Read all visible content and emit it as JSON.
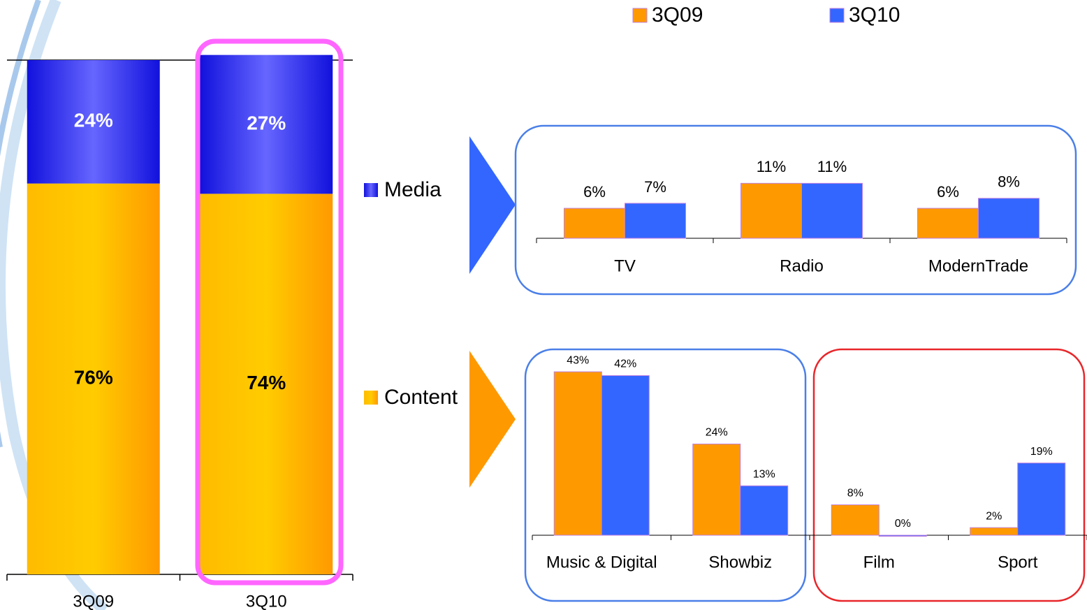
{
  "chart_data": [
    {
      "type": "stacked_bar",
      "categories": [
        "3Q09",
        "3Q10"
      ],
      "series": [
        {
          "name": "Content",
          "color": "#ffbb00",
          "values": [
            76,
            74
          ],
          "value_labels": [
            "76%",
            "74%"
          ]
        },
        {
          "name": "Media",
          "color": "#3333ee",
          "values": [
            24,
            27
          ],
          "value_labels": [
            "24%",
            "27%"
          ]
        }
      ],
      "ylim": [
        0,
        100
      ]
    },
    {
      "type": "bar",
      "categories": [
        "TV",
        "Radio",
        "ModernTrade"
      ],
      "series": [
        {
          "name": "3Q09",
          "color": "#ff9900",
          "values": [
            6,
            11,
            6
          ],
          "value_labels": [
            "6%",
            "11%",
            "6%"
          ]
        },
        {
          "name": "3Q10",
          "color": "#3366ff",
          "values": [
            7,
            11,
            8
          ],
          "value_labels": [
            "7%",
            "11%",
            "8%"
          ]
        }
      ],
      "ylim": [
        0,
        20
      ]
    },
    {
      "type": "bar",
      "categories": [
        "Music & Digital",
        "Showbiz",
        "Film",
        "Sport"
      ],
      "series": [
        {
          "color": "#ff9900",
          "values": [
            43,
            24,
            8,
            2
          ],
          "value_labels": [
            "43%",
            "24%",
            "8%",
            "2%"
          ]
        },
        {
          "color": "#3366ff",
          "values": [
            42,
            13,
            0,
            19
          ],
          "value_labels": [
            "42%",
            "13%",
            "0%",
            "19%"
          ]
        }
      ],
      "ylim": [
        0,
        50
      ]
    }
  ]
}
